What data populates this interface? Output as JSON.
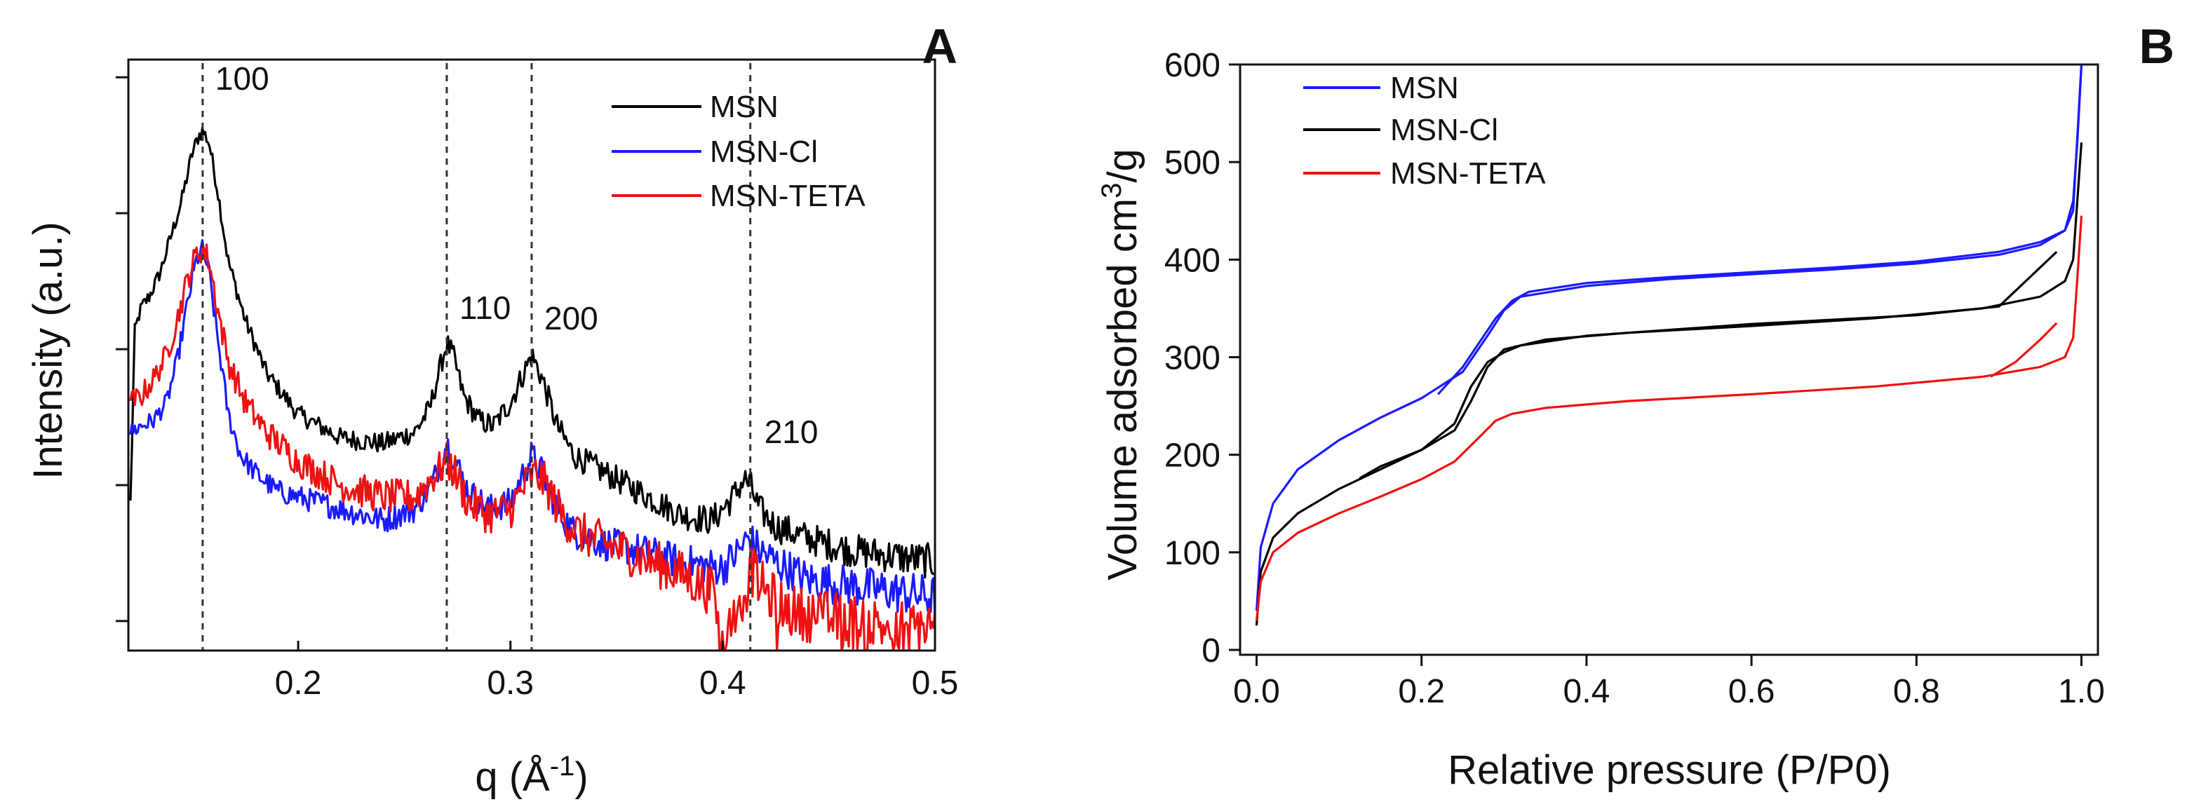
{
  "chart_data": [
    {
      "panel_label": "A",
      "type": "line",
      "title": "",
      "xlabel": "q (Å",
      "xlabel_sup": "-1",
      "xlabel_tail": ")",
      "ylabel": "Intensity (a.u.)",
      "xlim": [
        0.12,
        0.5
      ],
      "ylim": [
        0,
        1
      ],
      "xticks": [
        0.2,
        0.3,
        0.4,
        0.5
      ],
      "xtick_labels": [
        "0.2",
        "0.3",
        "0.4",
        "0.5"
      ],
      "yticks_unlabeled": [
        0.05,
        0.28,
        0.51,
        0.74,
        0.97
      ],
      "peak_lines": [
        {
          "label": "100",
          "q": 0.155
        },
        {
          "label": "110",
          "q": 0.27
        },
        {
          "label": "200",
          "q": 0.31
        },
        {
          "label": "210",
          "q": 0.413
        }
      ],
      "legend": [
        "MSN",
        "MSN-Cl",
        "MSN-TETA"
      ],
      "series": [
        {
          "name": "MSN",
          "color": "#000000",
          "noise": 0.012,
          "x": [
            0.121,
            0.123,
            0.126,
            0.13,
            0.135,
            0.14,
            0.145,
            0.15,
            0.153,
            0.155,
            0.158,
            0.162,
            0.167,
            0.175,
            0.185,
            0.2,
            0.22,
            0.24,
            0.255,
            0.262,
            0.267,
            0.27,
            0.273,
            0.278,
            0.285,
            0.292,
            0.3,
            0.305,
            0.31,
            0.315,
            0.322,
            0.33,
            0.345,
            0.36,
            0.38,
            0.395,
            0.405,
            0.41,
            0.413,
            0.417,
            0.425,
            0.44,
            0.46,
            0.48,
            0.5
          ],
          "y": [
            0.25,
            0.54,
            0.58,
            0.6,
            0.64,
            0.7,
            0.76,
            0.84,
            0.87,
            0.88,
            0.86,
            0.78,
            0.66,
            0.56,
            0.47,
            0.4,
            0.36,
            0.35,
            0.37,
            0.41,
            0.48,
            0.52,
            0.5,
            0.43,
            0.39,
            0.38,
            0.42,
            0.46,
            0.5,
            0.46,
            0.38,
            0.33,
            0.3,
            0.27,
            0.23,
            0.22,
            0.26,
            0.29,
            0.28,
            0.24,
            0.21,
            0.19,
            0.17,
            0.16,
            0.15
          ]
        },
        {
          "name": "MSN-Cl",
          "color": "#1a1aff",
          "noise": 0.015,
          "x": [
            0.121,
            0.126,
            0.132,
            0.138,
            0.143,
            0.148,
            0.152,
            0.155,
            0.158,
            0.162,
            0.167,
            0.173,
            0.18,
            0.19,
            0.2,
            0.22,
            0.24,
            0.255,
            0.263,
            0.268,
            0.27,
            0.273,
            0.28,
            0.29,
            0.3,
            0.305,
            0.31,
            0.315,
            0.322,
            0.33,
            0.345,
            0.36,
            0.38,
            0.4,
            0.408,
            0.412,
            0.417,
            0.425,
            0.44,
            0.46,
            0.48,
            0.5
          ],
          "y": [
            0.37,
            0.38,
            0.39,
            0.42,
            0.49,
            0.59,
            0.66,
            0.68,
            0.64,
            0.53,
            0.4,
            0.33,
            0.3,
            0.27,
            0.26,
            0.24,
            0.22,
            0.24,
            0.28,
            0.33,
            0.35,
            0.33,
            0.27,
            0.24,
            0.25,
            0.29,
            0.33,
            0.3,
            0.24,
            0.2,
            0.18,
            0.17,
            0.15,
            0.14,
            0.17,
            0.19,
            0.17,
            0.15,
            0.12,
            0.11,
            0.1,
            0.09
          ]
        },
        {
          "name": "MSN-TETA",
          "color": "#ee1111",
          "noise": 0.02,
          "x": [
            0.121,
            0.126,
            0.132,
            0.138,
            0.143,
            0.148,
            0.152,
            0.155,
            0.158,
            0.162,
            0.167,
            0.175,
            0.185,
            0.2,
            0.22,
            0.24,
            0.255,
            0.265,
            0.27,
            0.274,
            0.28,
            0.29,
            0.3,
            0.307,
            0.312,
            0.317,
            0.324,
            0.332,
            0.345,
            0.36,
            0.38,
            0.395,
            0.4,
            0.41,
            0.413,
            0.42,
            0.43,
            0.44,
            0.46,
            0.48,
            0.5
          ],
          "y": [
            0.42,
            0.43,
            0.46,
            0.5,
            0.56,
            0.63,
            0.67,
            0.68,
            0.66,
            0.58,
            0.49,
            0.42,
            0.37,
            0.32,
            0.28,
            0.26,
            0.26,
            0.3,
            0.32,
            0.3,
            0.25,
            0.23,
            0.24,
            0.28,
            0.3,
            0.28,
            0.23,
            0.2,
            0.18,
            0.16,
            0.13,
            0.1,
            0.0,
            0.12,
            0.14,
            0.1,
            0.07,
            0.06,
            0.05,
            0.04,
            0.04
          ]
        }
      ]
    },
    {
      "panel_label": "B",
      "type": "line",
      "title": "",
      "xlabel": "Relative pressure (P/P0)",
      "ylabel": "Volume adsorbed cm",
      "ylabel_sup": "3",
      "ylabel_tail": "/g",
      "xlim": [
        -0.02,
        1.02
      ],
      "ylim": [
        -5,
        600
      ],
      "xticks": [
        0.0,
        0.2,
        0.4,
        0.6,
        0.8,
        1.0
      ],
      "xtick_labels": [
        "0.0",
        "0.2",
        "0.4",
        "0.6",
        "0.8",
        "1.0"
      ],
      "yticks": [
        0,
        100,
        200,
        300,
        400,
        500,
        600
      ],
      "ytick_labels": [
        "0",
        "100",
        "200",
        "300",
        "400",
        "500",
        "600"
      ],
      "legend": [
        "MSN",
        "MSN-Cl",
        "MSN-TETA"
      ],
      "series": [
        {
          "name": "MSN",
          "color": "#1a1aff",
          "adsorption": {
            "x": [
              0.0,
              0.005,
              0.02,
              0.05,
              0.1,
              0.15,
              0.2,
              0.25,
              0.28,
              0.3,
              0.32,
              0.4,
              0.5,
              0.6,
              0.7,
              0.8,
              0.9,
              0.95,
              0.98,
              0.99,
              0.995,
              1.0
            ],
            "y": [
              40,
              105,
              150,
              185,
              215,
              238,
              258,
              285,
              322,
              348,
              362,
              373,
              380,
              385,
              390,
              396,
              405,
              415,
              430,
              460,
              520,
              600
            ]
          },
          "desorption": {
            "x": [
              1.0,
              0.99,
              0.98,
              0.95,
              0.9,
              0.8,
              0.7,
              0.6,
              0.5,
              0.4,
              0.33,
              0.31,
              0.29,
              0.27,
              0.25,
              0.22
            ],
            "y": [
              600,
              450,
              430,
              418,
              408,
              398,
              392,
              387,
              382,
              376,
              367,
              358,
              340,
              315,
              290,
              262
            ]
          }
        },
        {
          "name": "MSN-Cl",
          "color": "#000000",
          "adsorption": {
            "x": [
              0.0,
              0.005,
              0.02,
              0.05,
              0.1,
              0.15,
              0.2,
              0.24,
              0.26,
              0.28,
              0.3,
              0.35,
              0.45,
              0.6,
              0.75,
              0.88,
              0.95,
              0.98,
              0.99,
              0.995,
              1.0
            ],
            "y": [
              25,
              80,
              115,
              140,
              165,
              185,
              205,
              225,
              255,
              290,
              308,
              318,
              325,
              332,
              340,
              350,
              362,
              378,
              400,
              460,
              520
            ]
          },
          "desorption": {
            "x": [
              0.97,
              0.9,
              0.8,
              0.6,
              0.4,
              0.32,
              0.3,
              0.28,
              0.26,
              0.24,
              0.2,
              0.15,
              0.125
            ],
            "y": [
              408,
              352,
              343,
              334,
              322,
              312,
              305,
              295,
              270,
              232,
              205,
              188,
              176
            ]
          }
        },
        {
          "name": "MSN-TETA",
          "color": "#ee1111",
          "adsorption": {
            "x": [
              0.0,
              0.005,
              0.02,
              0.05,
              0.1,
              0.15,
              0.2,
              0.24,
              0.27,
              0.29,
              0.31,
              0.35,
              0.45,
              0.6,
              0.75,
              0.88,
              0.95,
              0.98,
              0.99,
              0.995,
              1.0
            ],
            "y": [
              30,
              70,
              100,
              120,
              140,
              157,
              175,
              193,
              218,
              235,
              242,
              248,
              255,
              262,
              270,
              280,
              290,
              300,
              320,
              380,
              445
            ]
          },
          "desorption": {
            "x": [
              0.97,
              0.95,
              0.92,
              0.89
            ],
            "y": [
              335,
              318,
              295,
              280
            ]
          }
        }
      ]
    }
  ]
}
